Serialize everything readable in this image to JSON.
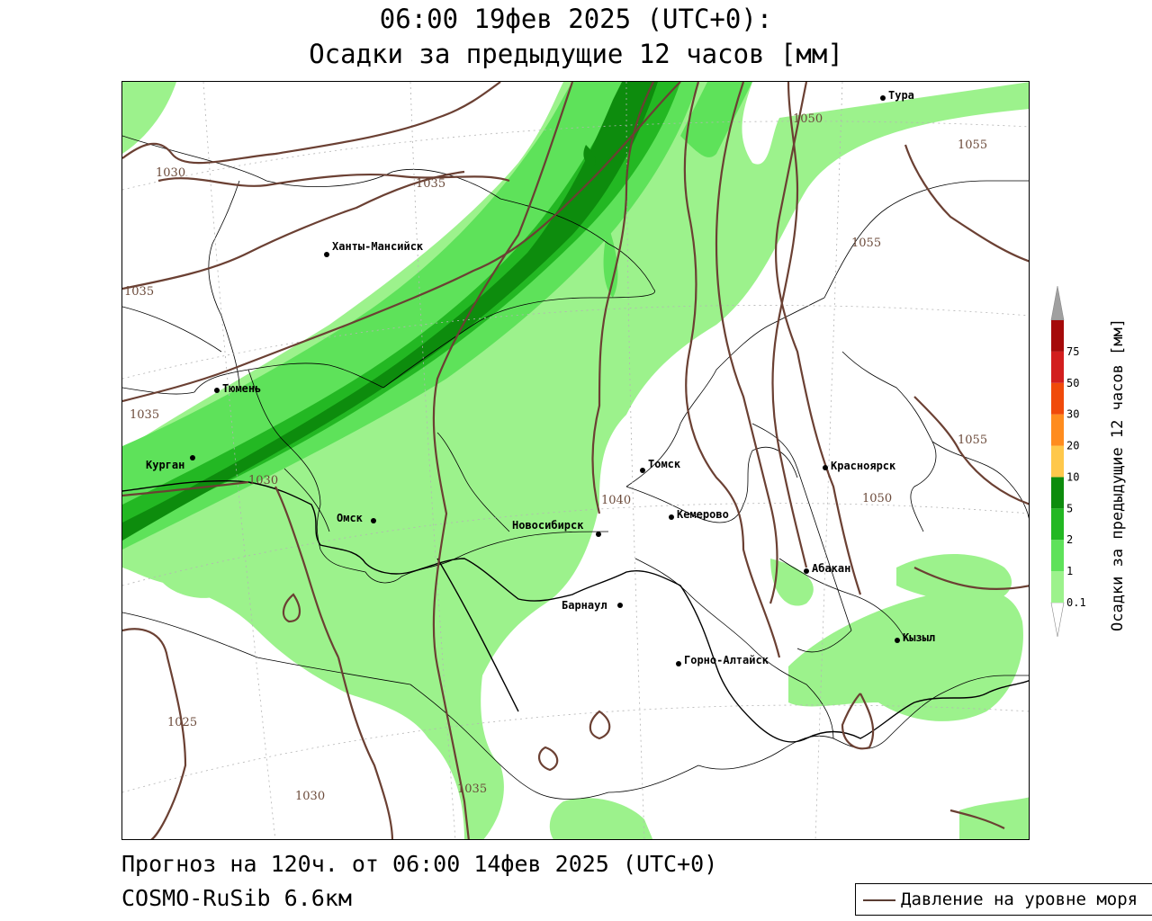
{
  "header": {
    "line1": "06:00 19фев 2025 (UTC+0):",
    "line2": "Осадки за предыдущие 12 часов [мм]"
  },
  "footer": {
    "forecast": "Прогноз на 120ч. от 06:00 14фев 2025 (UTC+0)",
    "model": "COSMO-RuSib 6.6км"
  },
  "legend": {
    "pressure_label": "Давление на уровне моря",
    "pressure_color": "#5a3c32"
  },
  "colorbar": {
    "title": "Осадки за предыдущие 12 часов [мм]",
    "levels": [
      "0.1",
      "1",
      "2",
      "5",
      "10",
      "20",
      "30",
      "50",
      "75"
    ],
    "colors": [
      "#ffffff",
      "#9cf28c",
      "#5ee25a",
      "#23b823",
      "#0d8c0d",
      "#ffc84b",
      "#ff8c1e",
      "#f04a0a",
      "#d21e1e",
      "#a50a0a",
      "#a0a0a0"
    ]
  },
  "map": {
    "precip_colors": {
      "light": "#9cf28c",
      "medium": "#5ee25a",
      "heavy": "#23b823",
      "very_heavy": "#0d8c0d"
    },
    "cities": [
      {
        "name": "Тура"
      },
      {
        "name": "Ханты-Мансийск"
      },
      {
        "name": "Тюмень"
      },
      {
        "name": "Курган"
      },
      {
        "name": "Омск"
      },
      {
        "name": "Новосибирск"
      },
      {
        "name": "Томск"
      },
      {
        "name": "Кемерово"
      },
      {
        "name": "Красноярск"
      },
      {
        "name": "Абакан"
      },
      {
        "name": "Барнаул"
      },
      {
        "name": "Горно-Алтайск"
      },
      {
        "name": "Кызыл"
      }
    ],
    "isobar_labels": [
      "1030",
      "1035",
      "1035",
      "1035",
      "1030",
      "1025",
      "1030",
      "1035",
      "1040",
      "1050",
      "1055",
      "1055",
      "1055",
      "1050"
    ]
  }
}
